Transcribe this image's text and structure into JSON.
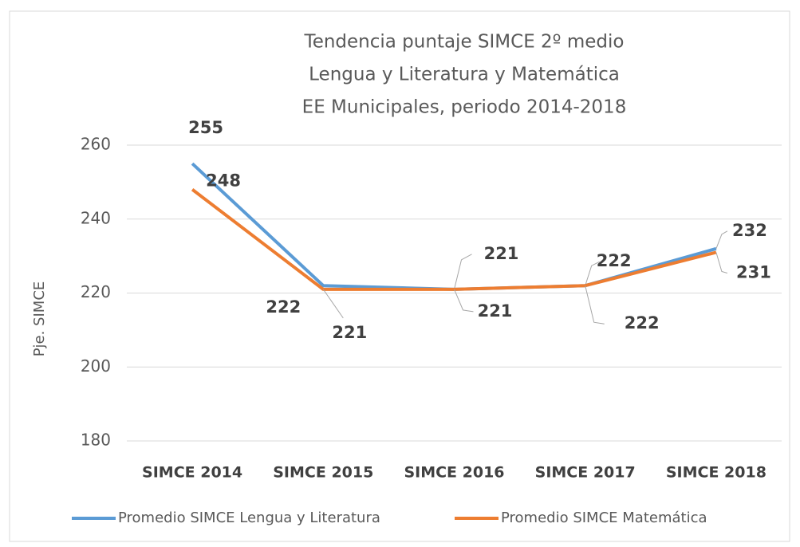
{
  "chart_data": {
    "type": "line",
    "title": [
      "Tendencia puntaje SIMCE 2º medio",
      "Lengua y Literatura y Matemática",
      "EE Municipales, periodo 2014-2018"
    ],
    "ylabel": "Pje. SIMCE",
    "categories": [
      "SIMCE 2014",
      "SIMCE 2015",
      "SIMCE 2016",
      "SIMCE 2017",
      "SIMCE 2018"
    ],
    "series": [
      {
        "name": "Promedio SIMCE Lengua y Literatura",
        "color": "#5b9bd5",
        "values": [
          255,
          222,
          221,
          222,
          232
        ]
      },
      {
        "name": "Promedio SIMCE Matemática",
        "color": "#ed7d31",
        "values": [
          248,
          221,
          221,
          222,
          231
        ]
      }
    ],
    "ylim": [
      180,
      260
    ],
    "yticks": [
      180,
      200,
      220,
      240,
      260
    ],
    "grid": true,
    "legend": "bottom"
  }
}
